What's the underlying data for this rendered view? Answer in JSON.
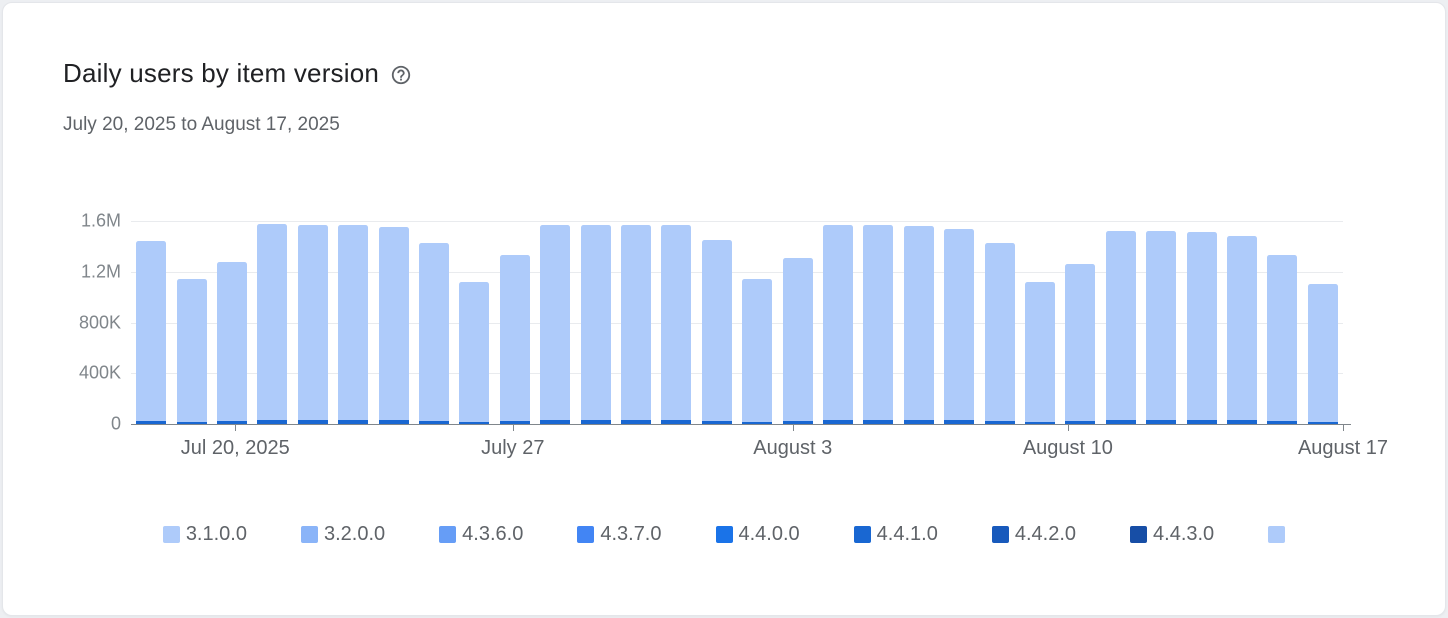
{
  "card": {
    "title": "Daily users by item version",
    "subtitle": "July 20, 2025 to August 17, 2025"
  },
  "icons": {
    "help": "help-outline-icon"
  },
  "chart_data": {
    "type": "bar",
    "stacked": true,
    "title": "Daily users by item version",
    "subtitle": "July 20, 2025 to August 17, 2025",
    "grid": true,
    "legend_position": "bottom",
    "ylim_m": [
      0,
      1.6
    ],
    "y_ticks": [
      {
        "label": "0",
        "value_m": 0
      },
      {
        "label": "400K",
        "value_m": 0.4
      },
      {
        "label": "800K",
        "value_m": 0.8
      },
      {
        "label": "1.2M",
        "value_m": 1.2
      },
      {
        "label": "1.6M",
        "value_m": 1.6
      }
    ],
    "x_ticks": [
      {
        "label": "Jul 20, 2025",
        "pos": 0.086
      },
      {
        "label": "July 27",
        "pos": 0.315
      },
      {
        "label": "August 3",
        "pos": 0.546
      },
      {
        "label": "August 10",
        "pos": 0.773
      },
      {
        "label": "August 17",
        "pos": 1.0
      }
    ],
    "bars_total_m": [
      1.44,
      1.14,
      1.28,
      1.58,
      1.57,
      1.57,
      1.55,
      1.43,
      1.12,
      1.33,
      1.57,
      1.57,
      1.57,
      1.57,
      1.45,
      1.14,
      1.31,
      1.57,
      1.57,
      1.56,
      1.54,
      1.43,
      1.12,
      1.26,
      1.52,
      1.52,
      1.51,
      1.48,
      1.33,
      1.1
    ],
    "bars_dark_base_m": [
      0.025,
      0.015,
      0.02,
      0.03,
      0.03,
      0.03,
      0.03,
      0.025,
      0.015,
      0.02,
      0.03,
      0.03,
      0.03,
      0.03,
      0.025,
      0.015,
      0.02,
      0.03,
      0.03,
      0.03,
      0.03,
      0.025,
      0.015,
      0.02,
      0.03,
      0.03,
      0.03,
      0.03,
      0.02,
      0.012
    ],
    "bar_color": "#aecbfa",
    "dark_base_color": "#1967d2",
    "gridline_color": "#e9ebee",
    "axis_color": "#80868b"
  },
  "legend": {
    "items": [
      {
        "label": "3.1.0.0",
        "color": "#aecbfa"
      },
      {
        "label": "3.2.0.0",
        "color": "#8ab4f8"
      },
      {
        "label": "4.3.6.0",
        "color": "#669df6"
      },
      {
        "label": "4.3.7.0",
        "color": "#4285f4"
      },
      {
        "label": "4.4.0.0",
        "color": "#1a73e8"
      },
      {
        "label": "4.4.1.0",
        "color": "#1967d2"
      },
      {
        "label": "4.4.2.0",
        "color": "#185abc"
      },
      {
        "label": "4.4.3.0",
        "color": "#174ea6"
      },
      {
        "label": "",
        "color": "#aecbfa",
        "partially_visible": true
      }
    ]
  }
}
